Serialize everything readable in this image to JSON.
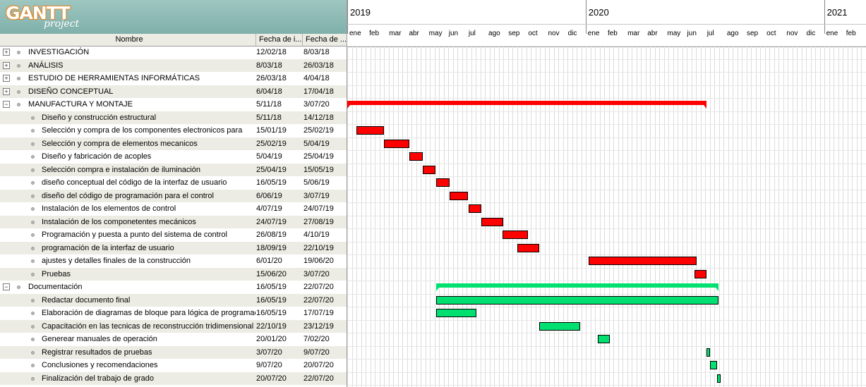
{
  "app": {
    "logo_text": "GANTT",
    "logo_sub": "project"
  },
  "tree": {
    "headers": {
      "name": "Nombre",
      "start": "Fecha de i...",
      "end": "Fecha de ..."
    },
    "rows": [
      {
        "level": 0,
        "toggle": "plus",
        "name": "INVESTIGACIÓN",
        "start": "12/02/18",
        "end": "8/03/18"
      },
      {
        "level": 0,
        "toggle": "plus",
        "name": "ANÁLISIS",
        "start": "8/03/18",
        "end": "26/03/18"
      },
      {
        "level": 0,
        "toggle": "plus",
        "name": "ESTUDIO DE HERRAMIENTAS INFORMÁTICAS",
        "start": "26/03/18",
        "end": "4/04/18"
      },
      {
        "level": 0,
        "toggle": "plus",
        "name": "DISEÑO CONCEPTUAL",
        "start": "6/04/18",
        "end": "17/04/18"
      },
      {
        "level": 0,
        "toggle": "minus",
        "name": "MANUFACTURA Y MONTAJE",
        "start": "5/11/18",
        "end": "3/07/20"
      },
      {
        "level": 1,
        "name": "Diseño y construcción estructural",
        "start": "5/11/18",
        "end": "14/12/18"
      },
      {
        "level": 1,
        "name": "Selección y compra de los componentes electronicos para",
        "start": "15/01/19",
        "end": "25/02/19"
      },
      {
        "level": 1,
        "name": "Selección y compra de elementos mecanicos",
        "start": "25/02/19",
        "end": "5/04/19"
      },
      {
        "level": 1,
        "name": "Diseño y fabricación de acoples",
        "start": "5/04/19",
        "end": "25/04/19"
      },
      {
        "level": 1,
        "name": "Selección compra e instalación de iluminación",
        "start": "25/04/19",
        "end": "15/05/19"
      },
      {
        "level": 1,
        "name": "diseño conceptual del código de la interfaz de usuario",
        "start": "16/05/19",
        "end": "5/06/19"
      },
      {
        "level": 1,
        "name": "diseño del código de programación para el control",
        "start": "6/06/19",
        "end": "3/07/19"
      },
      {
        "level": 1,
        "name": "Instalación de los elementos de control",
        "start": "4/07/19",
        "end": "24/07/19"
      },
      {
        "level": 1,
        "name": "Instalación de los componetentes mecánicos",
        "start": "24/07/19",
        "end": "27/08/19"
      },
      {
        "level": 1,
        "name": "Programación  y puesta a punto del sistema de control",
        "start": "26/08/19",
        "end": "4/10/19"
      },
      {
        "level": 1,
        "name": "programación de la interfaz de usuario",
        "start": "18/09/19",
        "end": "22/10/19"
      },
      {
        "level": 1,
        "name": "ajustes y detalles finales de la construcción",
        "start": "6/01/20",
        "end": "19/06/20"
      },
      {
        "level": 1,
        "name": "Pruebas",
        "start": "15/06/20",
        "end": "3/07/20"
      },
      {
        "level": 0,
        "toggle": "minus",
        "name": "Documentación",
        "start": "16/05/19",
        "end": "22/07/20"
      },
      {
        "level": 1,
        "name": "Redactar documento final",
        "start": "16/05/19",
        "end": "22/07/20"
      },
      {
        "level": 1,
        "name": "Elaboración de diagramas de bloque para lógica de programación",
        "start": "16/05/19",
        "end": "17/07/19"
      },
      {
        "level": 1,
        "name": "Capacitación en las tecnicas de reconstrucción tridimensional",
        "start": "22/10/19",
        "end": "23/12/19"
      },
      {
        "level": 1,
        "name": "Generear manuales de operación",
        "start": "20/01/20",
        "end": "7/02/20"
      },
      {
        "level": 1,
        "name": "Registrar resultados de pruebas",
        "start": "3/07/20",
        "end": "9/07/20"
      },
      {
        "level": 1,
        "name": "Conclusiones y recomendaciones",
        "start": "9/07/20",
        "end": "20/07/20"
      },
      {
        "level": 1,
        "name": "Finalización del trabajo de grado",
        "start": "20/07/20",
        "end": "22/07/20"
      }
    ]
  },
  "timeline": {
    "years": [
      "2019",
      "2020",
      "2021"
    ],
    "months": [
      "ene",
      "feb",
      "mar",
      "abr",
      "may",
      "jun",
      "jul",
      "ago",
      "sep",
      "oct",
      "nov",
      "dic",
      "ene",
      "feb",
      "mar",
      "abr",
      "may",
      "jun",
      "jul",
      "ago",
      "sep",
      "oct",
      "nov",
      "dic",
      "ene",
      "feb"
    ],
    "bars": [
      {
        "row": 4,
        "type": "summary",
        "color": "red"
      },
      {
        "row": 6,
        "type": "task",
        "color": "red"
      },
      {
        "row": 7,
        "type": "task",
        "color": "red"
      },
      {
        "row": 8,
        "type": "task",
        "color": "red"
      },
      {
        "row": 9,
        "type": "task",
        "color": "red"
      },
      {
        "row": 10,
        "type": "task",
        "color": "red"
      },
      {
        "row": 11,
        "type": "task",
        "color": "red"
      },
      {
        "row": 12,
        "type": "task",
        "color": "red"
      },
      {
        "row": 13,
        "type": "task",
        "color": "red"
      },
      {
        "row": 14,
        "type": "task",
        "color": "red"
      },
      {
        "row": 15,
        "type": "task",
        "color": "red"
      },
      {
        "row": 16,
        "type": "task",
        "color": "red"
      },
      {
        "row": 17,
        "type": "task",
        "color": "red"
      },
      {
        "row": 18,
        "type": "summary",
        "color": "green"
      },
      {
        "row": 19,
        "type": "task",
        "color": "green"
      },
      {
        "row": 20,
        "type": "task",
        "color": "green"
      },
      {
        "row": 21,
        "type": "task",
        "color": "green"
      },
      {
        "row": 22,
        "type": "task",
        "color": "green"
      },
      {
        "row": 23,
        "type": "task",
        "color": "green"
      },
      {
        "row": 24,
        "type": "task",
        "color": "green"
      },
      {
        "row": 25,
        "type": "task",
        "color": "green"
      }
    ]
  }
}
